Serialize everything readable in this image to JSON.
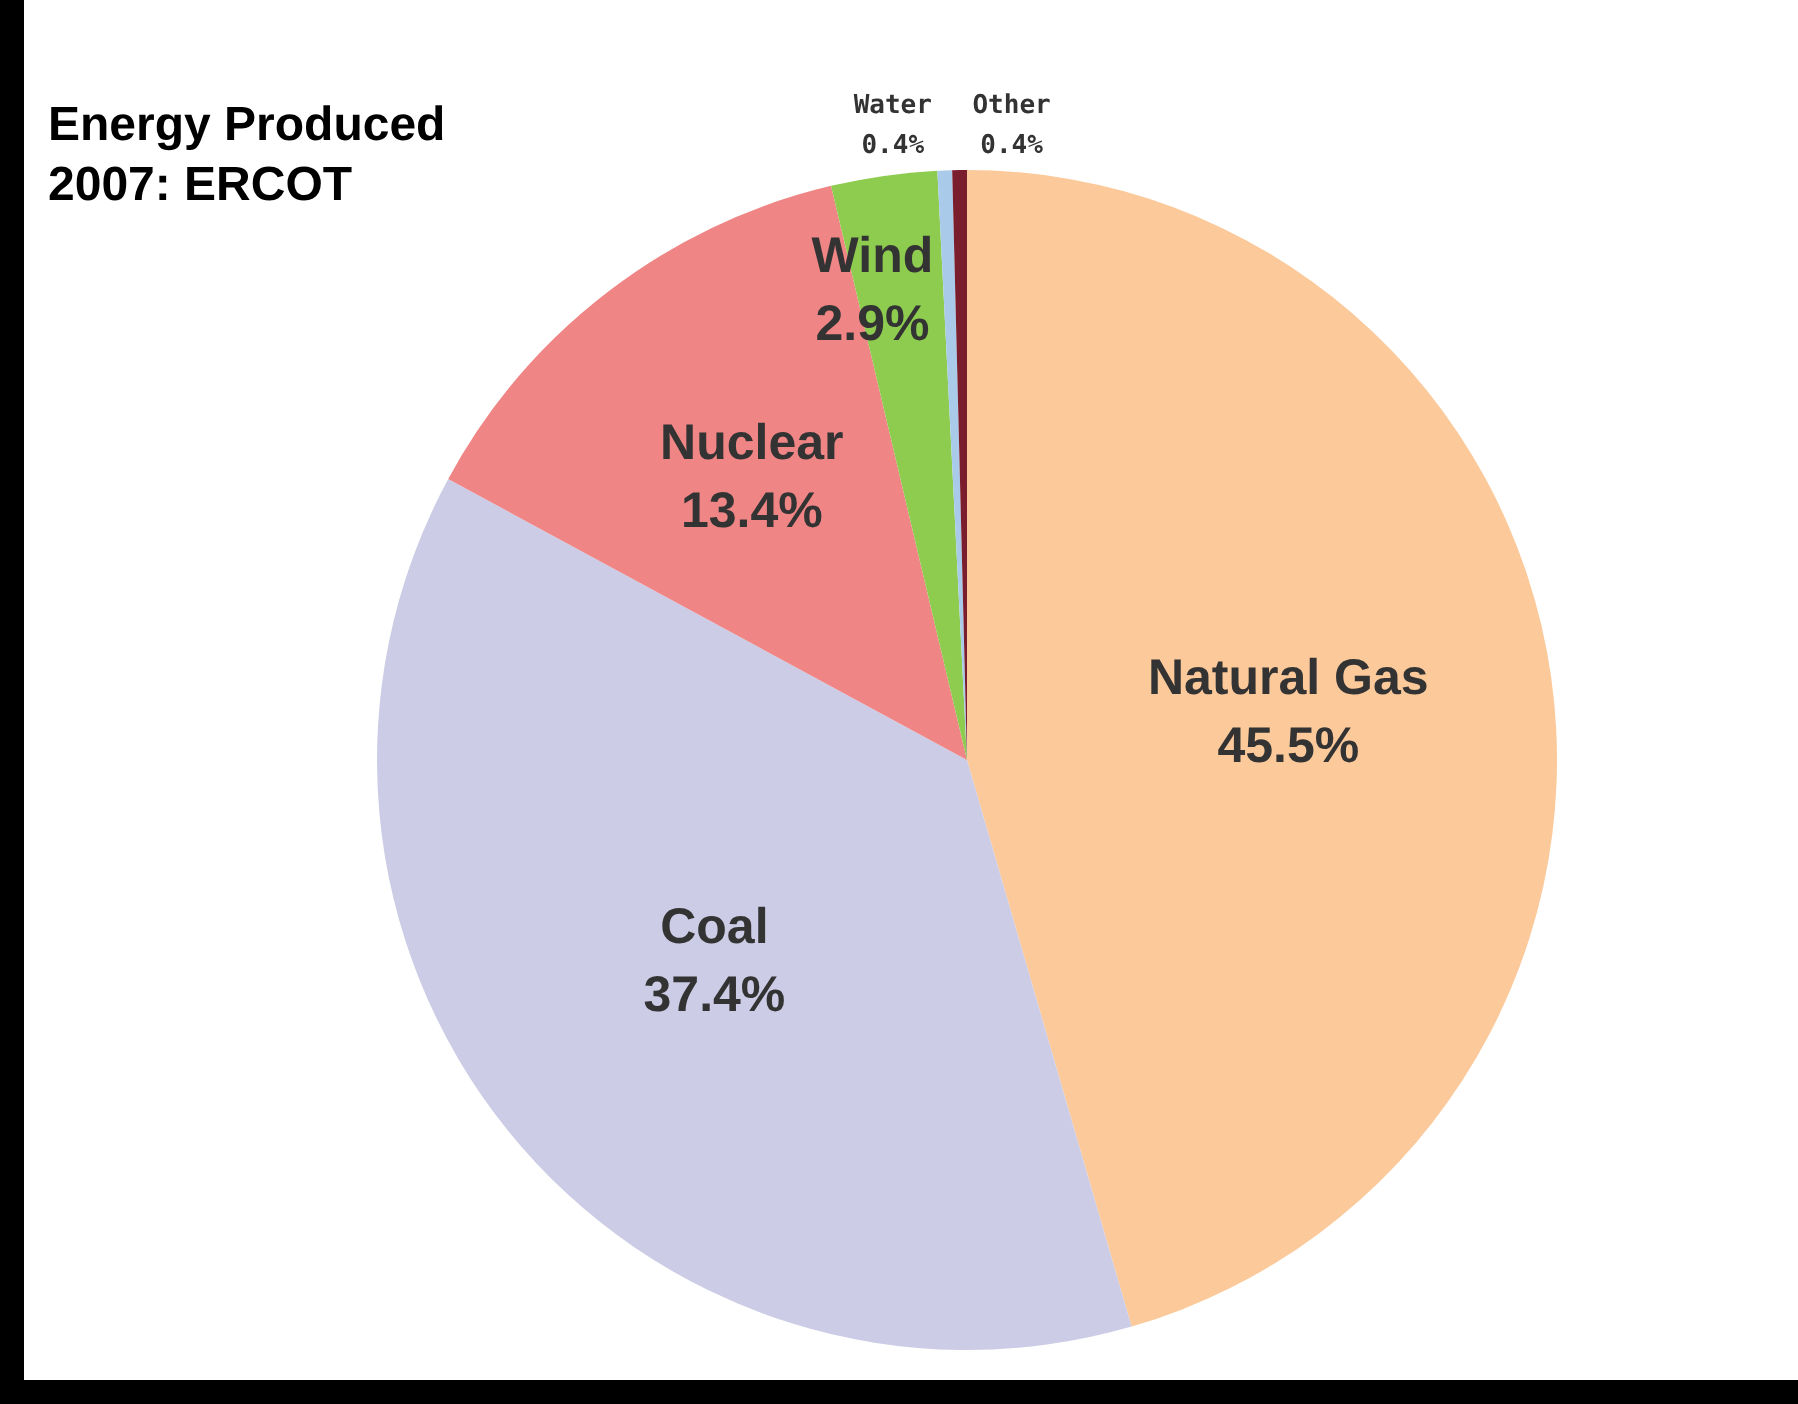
{
  "chart_data": {
    "type": "pie",
    "title": "Energy Produced 2007: ERCOT",
    "categories": [
      "Natural Gas",
      "Coal",
      "Nuclear",
      "Wind",
      "Water",
      "Other"
    ],
    "values": [
      45.5,
      37.4,
      13.4,
      2.9,
      0.4,
      0.4
    ],
    "colors": [
      "#fbc99a",
      "#cccce6",
      "#ef8585",
      "#8dcc4f",
      "#a9cbe9",
      "#7a1e2e"
    ],
    "value_labels": [
      "45.5%",
      "37.4%",
      "13.4%",
      "2.9%",
      "0.4%",
      "0.4%"
    ],
    "legend": false
  }
}
